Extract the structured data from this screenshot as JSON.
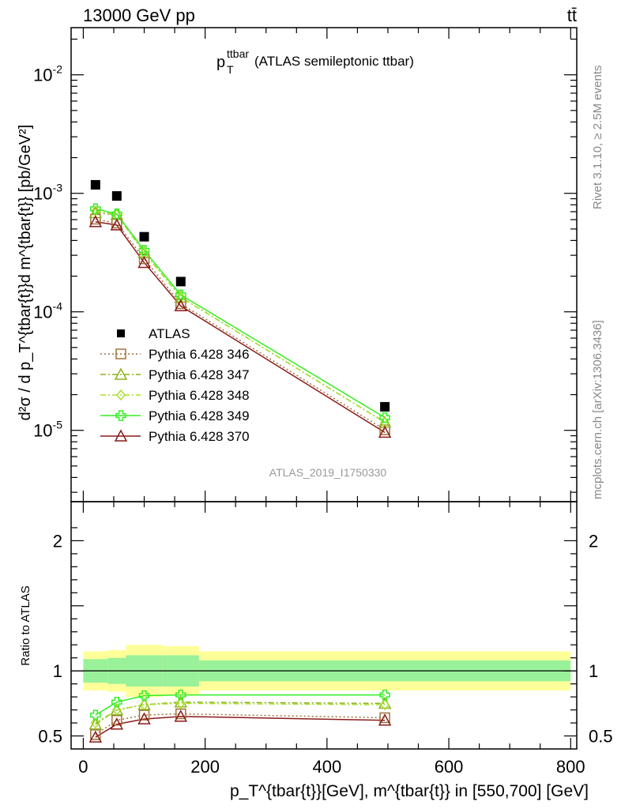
{
  "header": {
    "left": "13000 GeV pp",
    "right": "tt̄"
  },
  "side_labels": {
    "rivet": "Rivet 3.1.10, ≥ 2.5M events",
    "mcplots": "mcplots.cern.ch [arXiv:1306.3436]"
  },
  "title": {
    "main": "p",
    "sub": "T",
    "sup": "ttbar",
    "rest": " (ATLAS semileptonic ttbar)"
  },
  "analysis_tag": "ATLAS_2019_I1750330",
  "ylabel_top": "d²σ / d p_T^{tbar{t}}d m^{tbar{t}} [pb/GeV²]",
  "ylabel_bottom": "Ratio to ATLAS",
  "xlabel": "p_T^{tbar{t}}[GeV], m^{tbar{t}} in [550,700] [GeV]",
  "chart_data": [
    {
      "type": "scatter",
      "panel": "main",
      "yscale": "log",
      "xlim": [
        -20,
        810
      ],
      "ylim": [
        2.5e-06,
        0.025
      ],
      "x_ticks": [
        0,
        200,
        400,
        600,
        800
      ],
      "y_tick_labels": [
        "10^-5",
        "10^-4",
        "10^-3",
        "10^-2"
      ],
      "y_tick_values": [
        1e-05,
        0.0001,
        0.001,
        0.01
      ],
      "legend_position": "lower-left",
      "series": [
        {
          "name": "ATLAS",
          "color": "#000000",
          "marker": "square",
          "line": "none",
          "x": [
            20,
            55,
            100,
            160,
            495
          ],
          "y": [
            0.00118,
            0.00095,
            0.00043,
            0.00018,
            1.58e-05
          ]
        },
        {
          "name": "Pythia 6.428 346",
          "color": "#a0723a",
          "marker": "open-square",
          "line": "dotted",
          "x": [
            20,
            55,
            100,
            160,
            495
          ],
          "y": [
            0.000605,
            0.00056,
            0.00028,
            0.000117,
            1.01e-05
          ]
        },
        {
          "name": "Pythia 6.428 347",
          "color": "#8db01e",
          "marker": "open-triangle",
          "line": "dashdot",
          "x": [
            20,
            55,
            100,
            160,
            495
          ],
          "y": [
            0.000685,
            0.00066,
            0.000315,
            0.000133,
            1.17e-05
          ]
        },
        {
          "name": "Pythia 6.428 348",
          "color": "#a8e02c",
          "marker": "open-diamond",
          "line": "dashdot",
          "x": [
            20,
            55,
            100,
            160,
            495
          ],
          "y": [
            0.00071,
            0.00066,
            0.000315,
            0.000133,
            1.17e-05
          ]
        },
        {
          "name": "Pythia 6.428 349",
          "color": "#33ee22",
          "marker": "open-cross",
          "line": "solid",
          "x": [
            20,
            55,
            100,
            160,
            495
          ],
          "y": [
            0.00074,
            0.00067,
            0.00033,
            0.000139,
            1.28e-05
          ]
        },
        {
          "name": "Pythia 6.428 370",
          "color": "#8b1a1a",
          "marker": "open-triangle",
          "line": "solid",
          "x": [
            20,
            55,
            100,
            160,
            495
          ],
          "y": [
            0.000575,
            0.00054,
            0.00026,
            0.000112,
            9.6e-06
          ]
        }
      ]
    },
    {
      "type": "line",
      "panel": "ratio",
      "xlim": [
        -20,
        810
      ],
      "ylim": [
        0.4,
        2.3
      ],
      "x_ticks": [
        0,
        200,
        400,
        600,
        800
      ],
      "y_tick_labels": [
        "0.5",
        "1",
        "2"
      ],
      "y_tick_values": [
        0.5,
        1,
        2
      ],
      "reference_line": 1,
      "bands": {
        "bin_edges": [
          0,
          40,
          70,
          130,
          190,
          800
        ],
        "inner_low": [
          0.91,
          0.9,
          0.88,
          0.88,
          0.92
        ],
        "inner_high": [
          1.09,
          1.1,
          1.12,
          1.12,
          1.08
        ],
        "outer_low": [
          0.85,
          0.84,
          0.8,
          0.81,
          0.85
        ],
        "outer_high": [
          1.15,
          1.16,
          1.2,
          1.19,
          1.15
        ],
        "inner_color": "#99f199",
        "outer_color": "#ffff99"
      },
      "series": [
        {
          "name": "Pythia 6.428 346",
          "x": [
            20,
            55,
            100,
            160,
            495
          ],
          "y": [
            0.51,
            0.62,
            0.66,
            0.67,
            0.64
          ]
        },
        {
          "name": "Pythia 6.428 347",
          "x": [
            20,
            55,
            100,
            160,
            495
          ],
          "y": [
            0.59,
            0.7,
            0.74,
            0.76,
            0.75
          ]
        },
        {
          "name": "Pythia 6.428 348",
          "x": [
            20,
            55,
            100,
            160,
            495
          ],
          "y": [
            0.6,
            0.7,
            0.74,
            0.75,
            0.74
          ]
        },
        {
          "name": "Pythia 6.428 349",
          "x": [
            20,
            55,
            100,
            160,
            495
          ],
          "y": [
            0.66,
            0.76,
            0.81,
            0.815,
            0.815
          ]
        },
        {
          "name": "Pythia 6.428 370",
          "x": [
            20,
            55,
            100,
            160,
            495
          ],
          "y": [
            0.49,
            0.59,
            0.63,
            0.65,
            0.62
          ]
        }
      ]
    }
  ]
}
